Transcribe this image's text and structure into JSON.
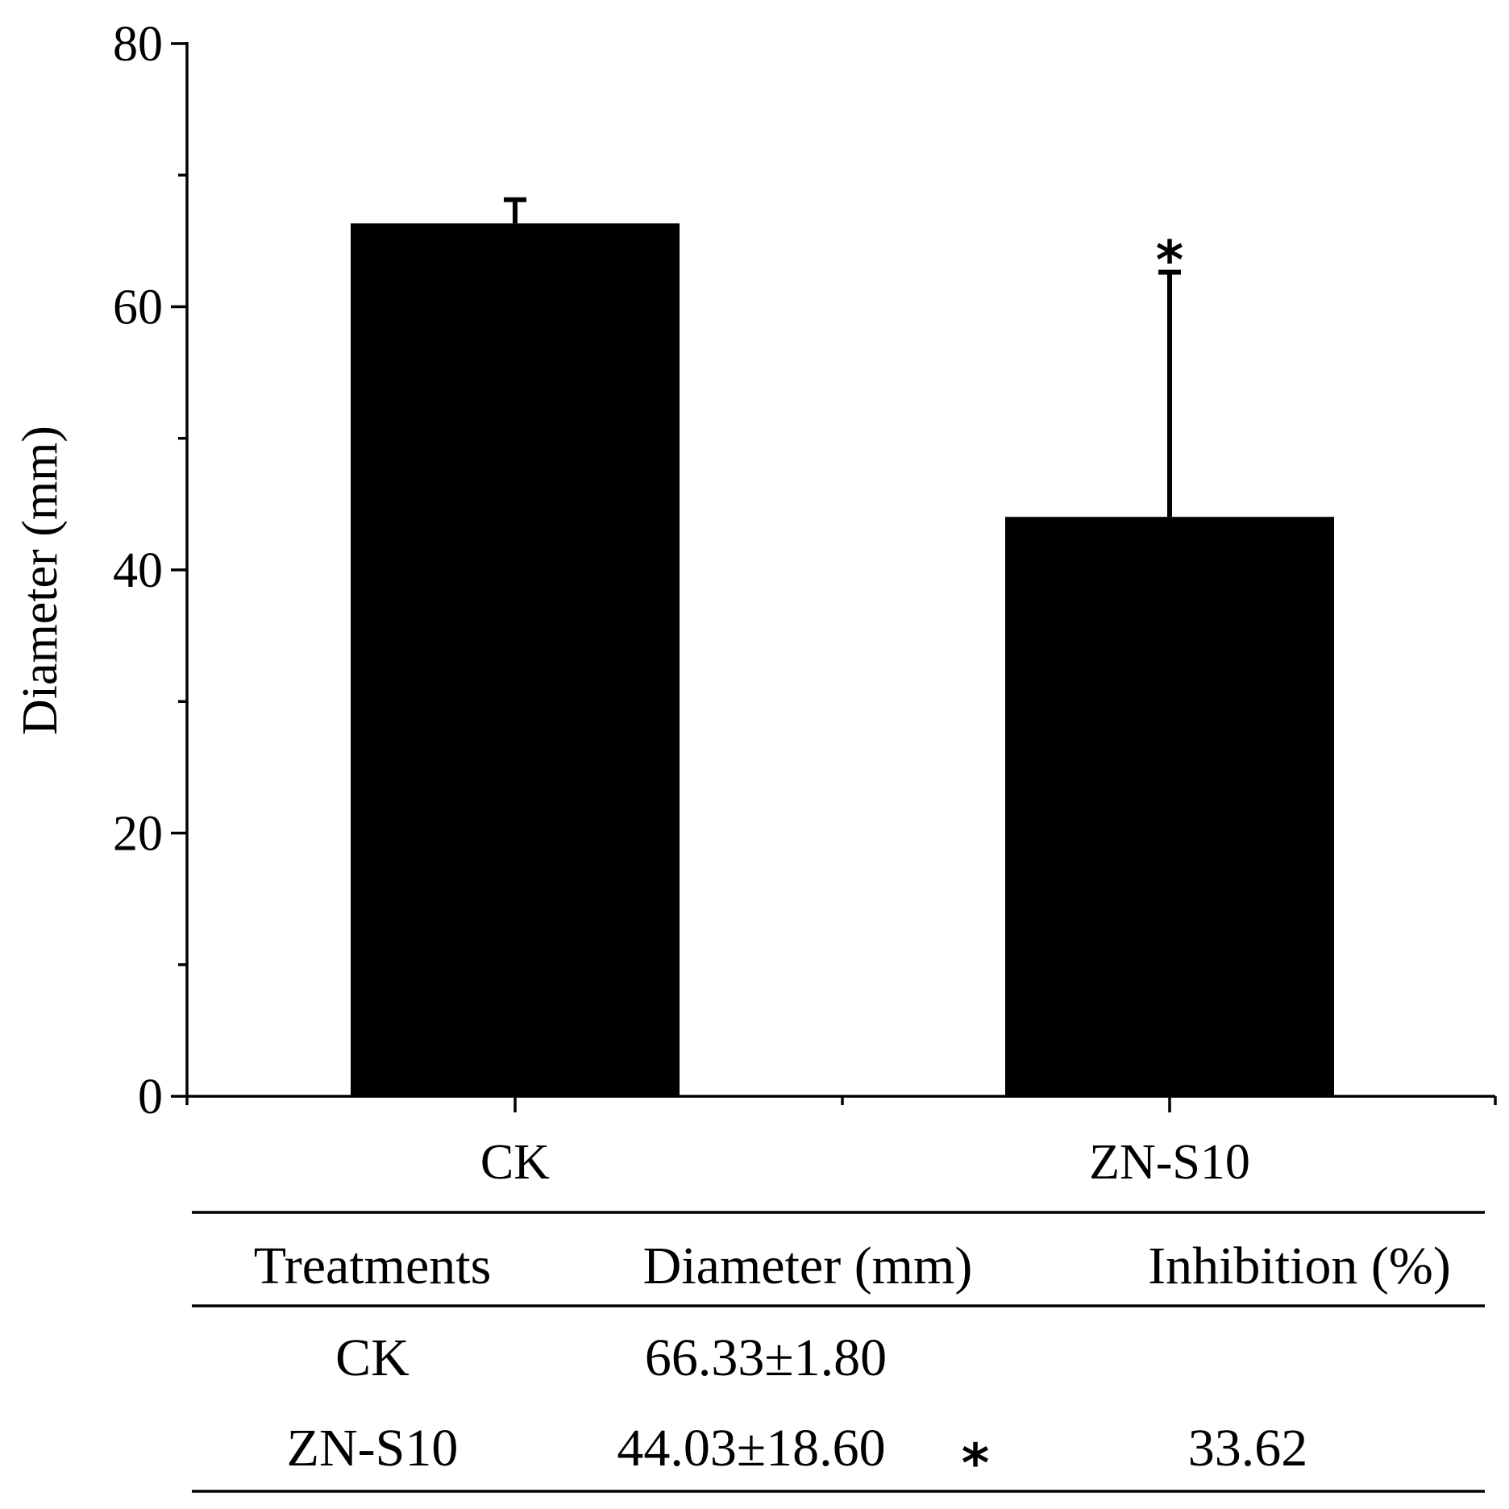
{
  "chart_data": {
    "type": "bar",
    "title": "",
    "xlabel": "",
    "ylabel": "Diameter (mm)",
    "ylim": [
      0,
      80
    ],
    "yticks": [
      0,
      20,
      40,
      60,
      80
    ],
    "categories": [
      "CK",
      "ZN-S10"
    ],
    "values": [
      66.33,
      44.03
    ],
    "errors": [
      1.8,
      18.6
    ],
    "annotations": [
      {
        "category": "ZN-S10",
        "text": "*"
      }
    ],
    "bar_color": "#000000",
    "grid": false
  },
  "table": {
    "headers": [
      "Treatments",
      "Diameter (mm)",
      "Inhibition (%)"
    ],
    "rows": [
      {
        "treatment": "CK",
        "diameter": "66.33±1.80",
        "star": "",
        "inhibition": ""
      },
      {
        "treatment": "ZN-S10",
        "diameter": "44.03±18.60",
        "star": "*",
        "inhibition": "33.62"
      }
    ]
  }
}
